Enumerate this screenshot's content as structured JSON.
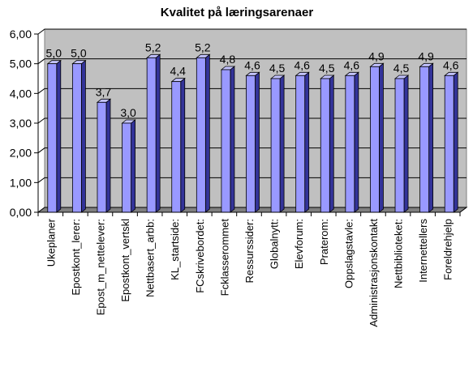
{
  "chart_data": {
    "type": "bar",
    "title": "Kvalitet på læringsarenaer",
    "xlabel": "",
    "ylabel": "",
    "ylim": [
      0,
      6
    ],
    "yticks": [
      "0,00",
      "1,00",
      "2,00",
      "3,00",
      "4,00",
      "5,00",
      "6,00"
    ],
    "grid": true,
    "legend": "none",
    "categories": [
      "Ukeplaner",
      "Epostkont_lerer:",
      "Epost_m_nettelever:",
      "Epostkont_vertskl",
      "Nettbasert_arbb:",
      "KL_startside:",
      "FCskrivebordet:",
      "Fcklasserommet",
      "Ressurssider:",
      "Globalnytt:",
      "Elevforum:",
      "Praterom:",
      "Oppslagstavle:",
      "Administrasjonskontakt",
      "Nettbiblioteket:",
      "Internettellers",
      "Foreldrehjelp"
    ],
    "values": [
      5.0,
      5.0,
      3.7,
      3.0,
      5.2,
      4.4,
      5.2,
      4.8,
      4.6,
      4.5,
      4.6,
      4.5,
      4.6,
      4.9,
      4.5,
      4.9,
      4.6
    ],
    "data_labels": [
      "5,0",
      "5,0",
      "3,7",
      "3,0",
      "5,2",
      "4,4",
      "5,2",
      "4,8",
      "4,6",
      "4,5",
      "4,6",
      "4,5",
      "4,6",
      "4,9",
      "4,5",
      "4,9",
      "4,6"
    ],
    "colors": {
      "bar_front": "#9999ff",
      "bar_side": "#333399",
      "bar_top": "#c4c4ff",
      "plot_wall": "#c0c0c0",
      "floor": "#808080",
      "gridline": "#000000"
    }
  }
}
